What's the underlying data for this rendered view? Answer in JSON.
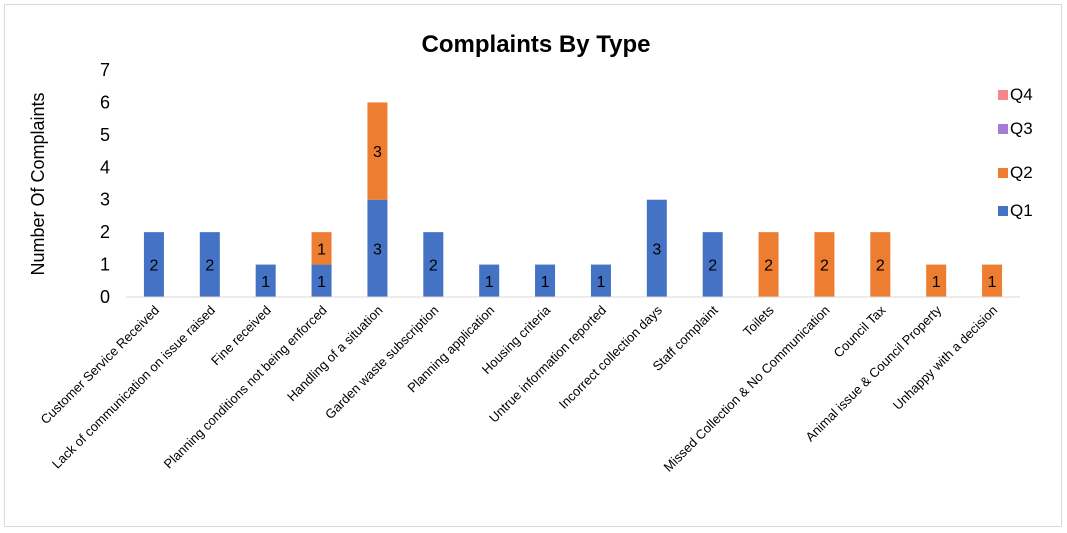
{
  "chart_data": {
    "type": "bar",
    "stacked": true,
    "title": "Complaints By Type",
    "ylabel": "Number Of Complaints",
    "xlabel": "",
    "ylim": [
      0,
      7
    ],
    "yticks": [
      0,
      1,
      2,
      3,
      4,
      5,
      6,
      7
    ],
    "grid": false,
    "legend_position": "right",
    "categories": [
      "Customer Service Received",
      "Lack of communication  on issue raised",
      "Fine received",
      "Planning  conditions not being enforced",
      "Handling of a situation",
      "Garden waste subscription",
      "Planning application",
      "Housing criteria",
      "Untrue information reported",
      "Incorrect collection days",
      "Staff complaint",
      "Toilets",
      "Missed Collection & No Communication",
      "Council Tax",
      "Animal issue & Council Property",
      "Unhappy with a decision"
    ],
    "series": [
      {
        "name": "Q1",
        "color": "#4472c4",
        "values": [
          2,
          2,
          1,
          1,
          3,
          2,
          1,
          1,
          1,
          3,
          2,
          0,
          0,
          0,
          0,
          0
        ]
      },
      {
        "name": "Q2",
        "color": "#ed7d31",
        "values": [
          0,
          0,
          0,
          1,
          3,
          0,
          0,
          0,
          0,
          0,
          0,
          2,
          2,
          2,
          1,
          1
        ]
      },
      {
        "name": "Q3",
        "color": "#a57bd6",
        "values": [
          0,
          0,
          0,
          0,
          0,
          0,
          0,
          0,
          0,
          0,
          0,
          0,
          0,
          0,
          0,
          0
        ]
      },
      {
        "name": "Q4",
        "color": "#f4868c",
        "values": [
          0,
          0,
          0,
          0,
          0,
          0,
          0,
          0,
          0,
          0,
          0,
          0,
          0,
          0,
          0,
          0
        ]
      }
    ],
    "legend_order": [
      "Q4",
      "Q3",
      "Q2",
      "Q1"
    ]
  }
}
